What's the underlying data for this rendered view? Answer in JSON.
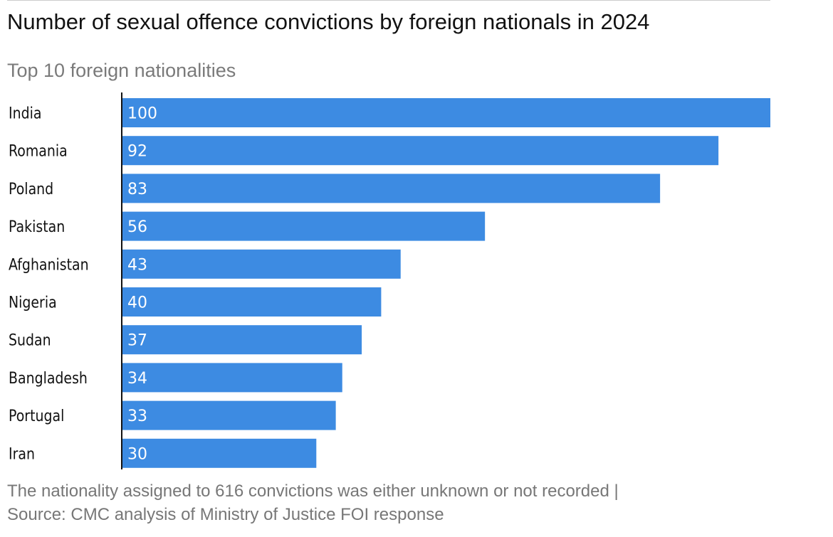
{
  "title": "Number of sexual offence convictions by foreign nationals in 2024",
  "subtitle": "Top 10 foreign nationalities",
  "footnote": {
    "note": "The nationality assigned to 616 convictions was either unknown or not recorded |",
    "source": "Source: CMC analysis of Ministry of Justice FOI response"
  },
  "colors": {
    "bar": "#3d8be2",
    "axis": "#121212",
    "value_text": "#ffffff"
  },
  "chart_data": {
    "type": "bar",
    "orientation": "horizontal",
    "title": "Number of sexual offence convictions by foreign nationals in 2024",
    "subtitle": "Top 10 foreign nationalities",
    "categories": [
      "India",
      "Romania",
      "Poland",
      "Pakistan",
      "Afghanistan",
      "Nigeria",
      "Sudan",
      "Bangladesh",
      "Portugal",
      "Iran"
    ],
    "values": [
      100,
      92,
      83,
      56,
      43,
      40,
      37,
      34,
      33,
      30
    ],
    "xlim": [
      0,
      100
    ],
    "data_labels": "inside-start",
    "grid": false,
    "legend": "none"
  }
}
